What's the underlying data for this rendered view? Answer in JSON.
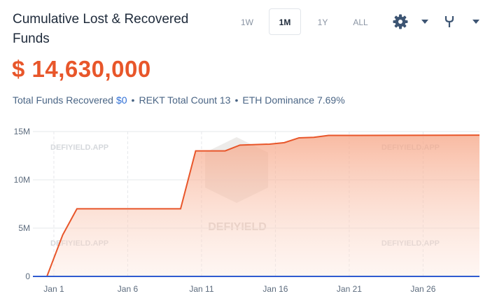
{
  "chart_data": {
    "type": "area",
    "title": "Cumulative Lost & Recovered Funds",
    "headline": "$ 14,630,000",
    "ranges": [
      "1W",
      "1M",
      "1Y",
      "ALL"
    ],
    "selected_range": 1,
    "stats": [
      "Total Funds Recovered",
      "$0",
      "REKT Total Count 13",
      "ETH Dominance 7.69%"
    ],
    "watermark": "DEFIYIELD.APP",
    "logo_text": "DEFIYIELD",
    "x": [
      -0.42,
      0.53,
      1.6,
      2.56,
      9.58,
      10.6,
      12.6,
      13.6,
      15.6,
      16.6,
      17.6,
      18.6,
      19.6,
      29.82
    ],
    "series": [
      {
        "color": "#e8562a",
        "fill": true,
        "values": [
          0,
          0,
          4300000,
          7000000,
          7000000,
          13000000,
          13000000,
          13600000,
          13700000,
          13850000,
          14350000,
          14400000,
          14600000,
          14630000
        ]
      },
      {
        "color": "#2f5bd0",
        "fill": false,
        "values": [
          0,
          0,
          0,
          0,
          0,
          0,
          0,
          0,
          0,
          0,
          0,
          0,
          0,
          0
        ]
      }
    ],
    "xlim": [
      -0.42,
      29.82
    ],
    "xticks": [
      {
        "value": 1,
        "label": "Jan 1"
      },
      {
        "value": 6,
        "label": "Jan 6"
      },
      {
        "value": 11,
        "label": "Jan 11"
      },
      {
        "value": 16,
        "label": "Jan 16"
      },
      {
        "value": 21,
        "label": "Jan 21"
      },
      {
        "value": 26,
        "label": "Jan 26"
      }
    ],
    "ylim": [
      0,
      15000000
    ],
    "yticks": [
      {
        "value": 0,
        "label": "0"
      },
      {
        "value": 5000000,
        "label": "5M"
      },
      {
        "value": 10000000,
        "label": "10M"
      },
      {
        "value": 15000000,
        "label": "15M"
      }
    ],
    "grid": true
  }
}
